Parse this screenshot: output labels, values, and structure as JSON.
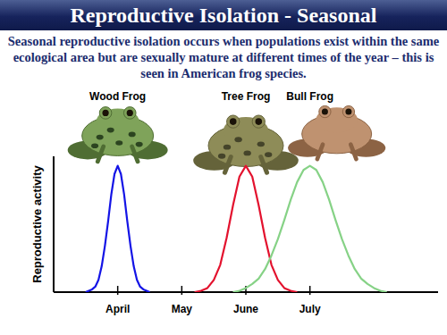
{
  "chart_data": {
    "type": "line",
    "title": "Reproductive Isolation - Seasonal",
    "subtitle": "Seasonal reproductive isolation occurs when populations exist within the same ecological area but are sexually mature at different times of the year – this is seen in American frog species.",
    "y_label": "Reproductive activity",
    "xlim": [
      3,
      9
    ],
    "xticks": [
      {
        "value": 4,
        "label": "April"
      },
      {
        "value": 5,
        "label": "May"
      },
      {
        "value": 6,
        "label": "June"
      },
      {
        "value": 7,
        "label": "July"
      }
    ],
    "ylim": [
      0,
      100
    ],
    "yticks": [],
    "tick_labels": "x",
    "series": [
      {
        "name": "Wood Frog",
        "color": "#1414e6",
        "x": [
          3.5,
          3.55,
          3.6,
          3.65,
          3.7,
          3.75,
          3.8,
          3.85,
          3.9,
          3.95,
          4,
          4.05,
          4.1,
          4.15,
          4.2,
          4.25,
          4.3,
          4.35,
          4.4,
          4.45,
          4.5
        ],
        "values": [
          0,
          1,
          2,
          4,
          9,
          19,
          34,
          52,
          72,
          87,
          93,
          87,
          72,
          52,
          34,
          19,
          9,
          4,
          2,
          1,
          0
        ]
      },
      {
        "name": "Tree Frog",
        "color": "#e3122e",
        "x": [
          5.2,
          5.3,
          5.4,
          5.5,
          5.6,
          5.7,
          5.8,
          5.9,
          6,
          6.1,
          6.2,
          6.3,
          6.4,
          6.5,
          6.6,
          6.7,
          6.8
        ],
        "values": [
          0,
          1,
          3,
          9,
          20,
          40,
          64,
          85,
          93,
          85,
          64,
          40,
          20,
          9,
          3,
          1,
          0
        ]
      },
      {
        "name": "Bull Frog",
        "color": "#86d286",
        "x": [
          5.8,
          5.9,
          6,
          6.1,
          6.2,
          6.3,
          6.4,
          6.5,
          6.6,
          6.7,
          6.8,
          6.9,
          7,
          7.1,
          7.2,
          7.3,
          7.4,
          7.5,
          7.6,
          7.7,
          7.8,
          7.9,
          8,
          8.1,
          8.2
        ],
        "values": [
          0,
          1,
          3,
          6,
          10,
          17,
          27,
          39,
          53,
          68,
          81,
          90,
          93,
          90,
          81,
          68,
          53,
          39,
          27,
          17,
          10,
          6,
          3,
          1,
          0
        ]
      }
    ]
  }
}
